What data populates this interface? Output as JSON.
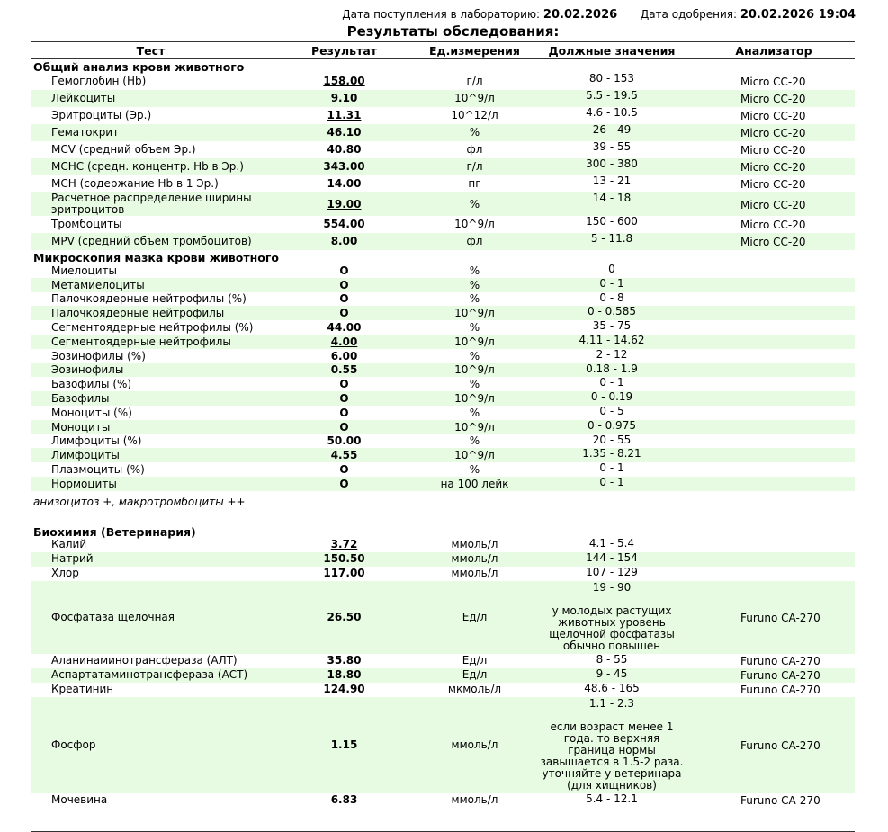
{
  "header": {
    "received_label": "Дата поступления в лабораторию:",
    "received_date": "20.02.2026",
    "approved_label": "Дата одобрения:",
    "approved_date": "20.02.2026 19:04",
    "title": "Результаты обследования:"
  },
  "columns": [
    "Тест",
    "Результат",
    "Ед.измерения",
    "Должные значения",
    "Анализатор"
  ],
  "colors": {
    "stripe": "#e6fbe1",
    "rule": "#333333"
  },
  "sections": [
    {
      "title": "Общий анализ крови животного",
      "kind": "cbc",
      "rows": [
        {
          "test": "Гемоглобин (Hb)",
          "result": "158.00",
          "flag": true,
          "unit": "г/л",
          "norm": "80 - 153",
          "analyzer": "Micro CC-20"
        },
        {
          "test": "Лейкоциты",
          "result": "9.10",
          "flag": false,
          "unit": "10^9/л",
          "norm": "5.5 - 19.5",
          "analyzer": "Micro CC-20"
        },
        {
          "test": "Эритроциты (Эр.)",
          "result": "11.31",
          "flag": true,
          "unit": "10^12/л",
          "norm": "4.6 - 10.5",
          "analyzer": "Micro CC-20"
        },
        {
          "test": "Гематокрит",
          "result": "46.10",
          "flag": false,
          "unit": "%",
          "norm": "26 - 49",
          "analyzer": "Micro CC-20"
        },
        {
          "test": "MCV (средний объем Эр.)",
          "result": "40.80",
          "flag": false,
          "unit": "фл",
          "norm": "39 - 55",
          "analyzer": "Micro CC-20"
        },
        {
          "test": "MCHC (средн. концентр. Hb в Эр.)",
          "result": "343.00",
          "flag": false,
          "unit": "г/л",
          "norm": "300 - 380",
          "analyzer": "Micro CC-20"
        },
        {
          "test": "MCH (содержание Hb в 1 Эр.)",
          "result": "14.00",
          "flag": false,
          "unit": "пг",
          "norm": "13 - 21",
          "analyzer": "Micro CC-20"
        },
        {
          "test": "Расчетное распределение ширины эритроцитов",
          "result": "19.00",
          "flag": true,
          "unit": "%",
          "norm": "14 - 18",
          "analyzer": "Micro CC-20"
        },
        {
          "test": "Тромбоциты",
          "result": "554.00",
          "flag": false,
          "unit": "10^9/л",
          "norm": "150 - 600",
          "analyzer": "Micro CC-20"
        },
        {
          "test": "MPV (средний объем тромбоцитов)",
          "result": "8.00",
          "flag": false,
          "unit": "фл",
          "norm": "5 - 11.8",
          "analyzer": "Micro CC-20"
        }
      ]
    },
    {
      "title": "Микроскопия мазка крови животного",
      "kind": "mic",
      "note": "анизоцитоз +, макротромбоциты ++",
      "rows": [
        {
          "test": "Миелоциты",
          "result": "О",
          "flag": false,
          "unit": "%",
          "norm": "0",
          "analyzer": ""
        },
        {
          "test": "Метамиелоциты",
          "result": "О",
          "flag": false,
          "unit": "%",
          "norm": "0 - 1",
          "analyzer": ""
        },
        {
          "test": "Палочкоядерные нейтрофилы (%)",
          "result": "О",
          "flag": false,
          "unit": "%",
          "norm": "0 - 8",
          "analyzer": ""
        },
        {
          "test": "Палочкоядерные нейтрофилы",
          "result": "О",
          "flag": false,
          "unit": "10^9/л",
          "norm": "0 - 0.585",
          "analyzer": ""
        },
        {
          "test": "Сегментоядерные нейтрофилы (%)",
          "result": "44.00",
          "flag": false,
          "unit": "%",
          "norm": "35 - 75",
          "analyzer": ""
        },
        {
          "test": "Сегментоядерные нейтрофилы",
          "result": "4.00",
          "flag": true,
          "unit": "10^9/л",
          "norm": "4.11 - 14.62",
          "analyzer": ""
        },
        {
          "test": "Эозинофилы (%)",
          "result": "6.00",
          "flag": false,
          "unit": "%",
          "norm": "2 - 12",
          "analyzer": ""
        },
        {
          "test": "Эозинофилы",
          "result": "0.55",
          "flag": false,
          "unit": "10^9/л",
          "norm": "0.18 - 1.9",
          "analyzer": ""
        },
        {
          "test": "Базофилы (%)",
          "result": "О",
          "flag": false,
          "unit": "%",
          "norm": "0 - 1",
          "analyzer": ""
        },
        {
          "test": "Базофилы",
          "result": "О",
          "flag": false,
          "unit": "10^9/л",
          "norm": "0 - 0.19",
          "analyzer": ""
        },
        {
          "test": "Моноциты (%)",
          "result": "О",
          "flag": false,
          "unit": "%",
          "norm": "0 - 5",
          "analyzer": ""
        },
        {
          "test": "Моноциты",
          "result": "О",
          "flag": false,
          "unit": "10^9/л",
          "norm": "0 - 0.975",
          "analyzer": ""
        },
        {
          "test": "Лимфоциты (%)",
          "result": "50.00",
          "flag": false,
          "unit": "%",
          "norm": "20 - 55",
          "analyzer": ""
        },
        {
          "test": "Лимфоциты",
          "result": "4.55",
          "flag": false,
          "unit": "10^9/л",
          "norm": "1.35 - 8.21",
          "analyzer": ""
        },
        {
          "test": "Плазмоциты (%)",
          "result": "О",
          "flag": false,
          "unit": "%",
          "norm": "0 - 1",
          "analyzer": ""
        },
        {
          "test": "Нормоциты",
          "result": "О",
          "flag": false,
          "unit": "на 100 лейк",
          "norm": "0 - 1",
          "analyzer": ""
        }
      ]
    },
    {
      "title": "Биохимия (Ветеринария)",
      "kind": "bio",
      "rows": [
        {
          "test": "Калий",
          "result": "3.72",
          "flag": true,
          "unit": "ммоль/л",
          "norm": "4.1 - 5.4",
          "analyzer": ""
        },
        {
          "test": "Натрий",
          "result": "150.50",
          "flag": false,
          "unit": "ммоль/л",
          "norm": "144 - 154",
          "analyzer": ""
        },
        {
          "test": "Хлор",
          "result": "117.00",
          "flag": false,
          "unit": "ммоль/л",
          "norm": "107 - 129",
          "analyzer": ""
        },
        {
          "test": "Фосфатаза щелочная",
          "result": "26.50",
          "flag": false,
          "unit": "Ед/л",
          "norm": "19 - 90\n\nу молодых растущих животных уровень щелочной фосфатазы обычно повышен",
          "analyzer": "Furuno CA-270"
        },
        {
          "test": "Аланинаминотрансфераза (АЛТ)",
          "result": "35.80",
          "flag": false,
          "unit": "Ед/л",
          "norm": "8 - 55",
          "analyzer": "Furuno CA-270"
        },
        {
          "test": "Аспартатаминотрансфераза (АСТ)",
          "result": "18.80",
          "flag": false,
          "unit": "Ед/л",
          "norm": "9 - 45",
          "analyzer": "Furuno CA-270"
        },
        {
          "test": "Креатинин",
          "result": "124.90",
          "flag": false,
          "unit": "мкмоль/л",
          "norm": "48.6 - 165",
          "analyzer": "Furuno CA-270"
        },
        {
          "test": "Фосфор",
          "result": "1.15",
          "flag": false,
          "unit": "ммоль/л",
          "norm": "1.1 - 2.3\n\nесли возраст менее 1 года. то верхняя граница нормы завышается в 1.5-2 раза. уточняйте у ветеринара (для хищников)",
          "analyzer": "Furuno CA-270"
        },
        {
          "test": "Мочевина",
          "result": "6.83",
          "flag": false,
          "unit": "ммоль/л",
          "norm": "5.4 - 12.1",
          "analyzer": "Furuno CA-270"
        }
      ]
    }
  ]
}
